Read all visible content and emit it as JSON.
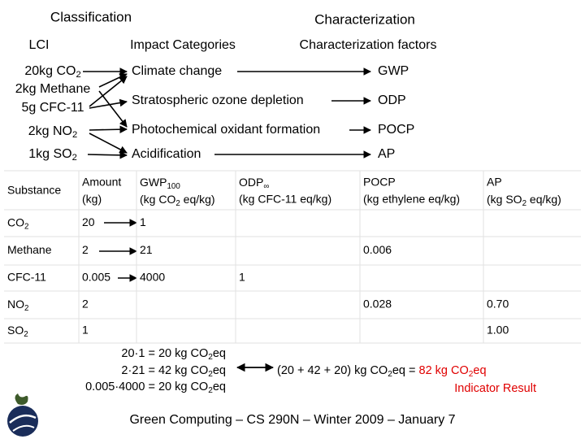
{
  "header": {
    "classification": "Classification",
    "characterization": "Characterization"
  },
  "columns": {
    "lci": "LCI",
    "impact_categories": "Impact Categories",
    "characterization_factors": "Characterization factors"
  },
  "lci": [
    [
      "20kg CO",
      {
        "text": "2",
        "sub": true
      }
    ],
    "2kg Methane",
    "5g CFC-11",
    [
      "2kg NO",
      {
        "text": "2",
        "sub": true
      }
    ],
    [
      "1kg SO",
      {
        "text": "2",
        "sub": true
      }
    ]
  ],
  "impact_categories": [
    "Climate change",
    "Stratospheric ozone depletion",
    "Photochemical oxidant formation",
    "Acidification"
  ],
  "factors": [
    "GWP",
    "ODP",
    "POCP",
    "AP"
  ],
  "table": {
    "header": [
      [
        "Substance"
      ],
      [
        "Amount",
        "(kg)"
      ],
      [
        [
          "GWP",
          {
            "text": "100",
            "sub": true
          }
        ],
        [
          "(kg CO",
          {
            "text": "2",
            "sub": true
          },
          " eq/kg)"
        ]
      ],
      [
        [
          "ODP",
          {
            "text": "∞",
            "sub": true
          }
        ],
        "(kg CFC-11 eq/kg)"
      ],
      [
        "POCP",
        "(kg ethylene eq/kg)"
      ],
      [
        "AP",
        [
          "(kg SO",
          {
            "text": "2",
            "sub": true
          },
          " eq/kg)"
        ]
      ]
    ],
    "rows": [
      [
        [
          "CO",
          {
            "text": "2",
            "sub": true
          }
        ],
        "20",
        "1",
        null,
        null,
        null
      ],
      [
        "Methane",
        "2",
        "21",
        null,
        "0.006",
        null
      ],
      [
        "CFC-11",
        "0.005",
        "4000",
        "1",
        null,
        null
      ],
      [
        [
          "NO",
          {
            "text": "2",
            "sub": true
          }
        ],
        "2",
        null,
        null,
        "0.028",
        "0.70"
      ],
      [
        [
          "SO",
          {
            "text": "2",
            "sub": true
          }
        ],
        "1",
        null,
        null,
        null,
        "1.00"
      ]
    ]
  },
  "calculations": [
    [
      "20·1 = 20 kg CO",
      {
        "text": "2",
        "sub": true
      },
      "eq"
    ],
    [
      "2·21 = 42 kg CO",
      {
        "text": "2",
        "sub": true
      },
      "eq"
    ],
    [
      "0.005·4000 = 20 kg CO",
      {
        "text": "2",
        "sub": true
      },
      "eq"
    ]
  ],
  "result": [
    "(20 + 42 + 20) kg CO",
    {
      "text": "2",
      "sub": true
    },
    "eq = ",
    {
      "text": "82 kg CO",
      "color": "#e00000"
    },
    {
      "text": "2",
      "sub": true,
      "color": "#e00000"
    },
    {
      "text": "eq",
      "color": "#e00000"
    }
  ],
  "result_label": [
    {
      "text": "Indicator Result",
      "color": "#e00000"
    }
  ],
  "footer": "Green Computing – CS 290N – Winter 2009 – January 7"
}
